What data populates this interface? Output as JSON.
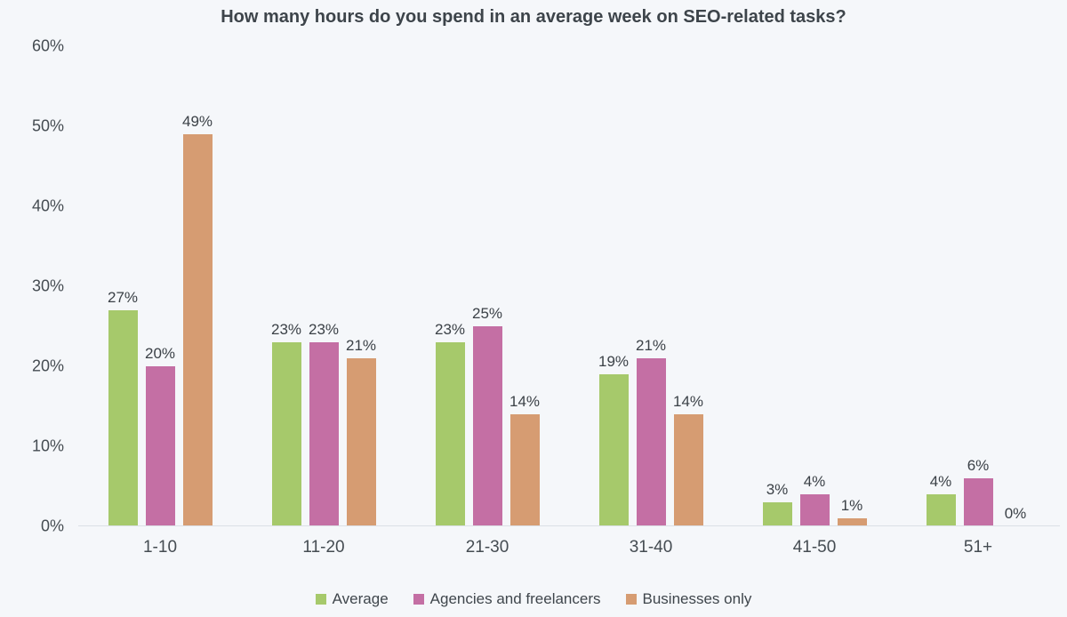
{
  "chart_data": {
    "type": "bar",
    "title": "How many hours do you spend in an average week on SEO-related tasks?",
    "categories": [
      "1-10",
      "11-20",
      "21-30",
      "31-40",
      "41-50",
      "51+"
    ],
    "series": [
      {
        "name": "Average",
        "color": "#a6c96b",
        "values": [
          27,
          23,
          23,
          19,
          3,
          4
        ]
      },
      {
        "name": "Agencies and freelancers",
        "color": "#c46fa4",
        "values": [
          20,
          23,
          25,
          21,
          4,
          6
        ]
      },
      {
        "name": "Businesses only",
        "color": "#d69c72",
        "values": [
          49,
          21,
          14,
          14,
          1,
          0
        ]
      }
    ],
    "value_label_suffix": "%",
    "y_ticks": [
      "0%",
      "10%",
      "20%",
      "30%",
      "40%",
      "50%",
      "60%"
    ],
    "ylim": [
      0,
      60
    ],
    "y_tick_step": 10,
    "grid": "baseline-only",
    "legend_position": "bottom",
    "colors": {
      "background": "#f5f7fa",
      "axis_line": "#dbe0e6",
      "text": "#3f464c"
    }
  }
}
